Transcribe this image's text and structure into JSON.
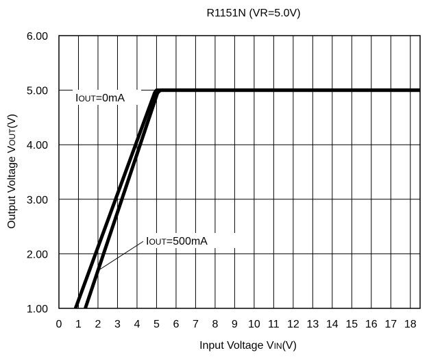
{
  "chart_data": {
    "type": "line",
    "title": "R1151N  (VR=5.0V)",
    "xlabel": {
      "main": "Input Voltage V",
      "sub": "IN",
      "tail": "(V)"
    },
    "ylabel": {
      "main": "Output Voltage V",
      "sub": "OUT",
      "tail": "(V)"
    },
    "xlim": [
      0,
      18.5
    ],
    "ylim": [
      1,
      6
    ],
    "x_ticks": [
      "0",
      "1",
      "2",
      "3",
      "4",
      "5",
      "6",
      "7",
      "8",
      "9",
      "10",
      "11",
      "12",
      "13",
      "14",
      "15",
      "16",
      "17",
      "18"
    ],
    "y_ticks": [
      "1.00",
      "2.00",
      "3.00",
      "4.00",
      "5.00",
      "6.00"
    ],
    "grid": true,
    "series": [
      {
        "name": "IOUT=0mA",
        "points": [
          [
            0.85,
            1.0
          ],
          [
            4.9,
            4.95
          ],
          [
            5.0,
            5.0
          ],
          [
            18.5,
            5.0
          ]
        ]
      },
      {
        "name": "IOUT=500mA",
        "points": [
          [
            1.35,
            1.0
          ],
          [
            5.05,
            4.95
          ],
          [
            5.2,
            5.0
          ],
          [
            18.5,
            5.0
          ]
        ]
      }
    ],
    "annotations": [
      {
        "label": "I",
        "sub": "OUT",
        "value": "=0mA",
        "series": "IOUT=0mA"
      },
      {
        "label": "I",
        "sub": "OUT",
        "value": "=500mA",
        "series": "IOUT=500mA"
      }
    ]
  }
}
